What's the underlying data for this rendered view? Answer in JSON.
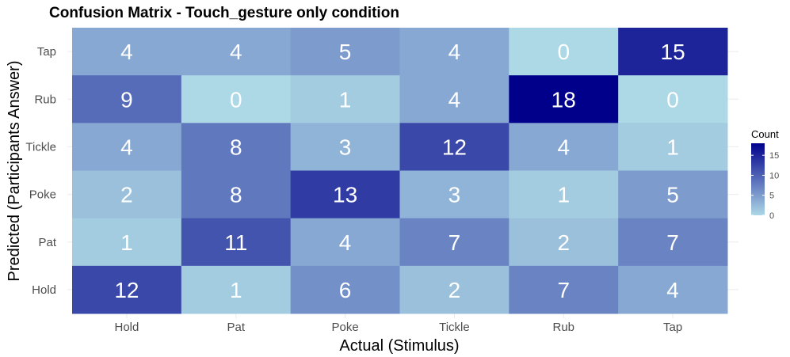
{
  "chart_data": {
    "type": "heatmap",
    "title": "Confusion Matrix - Touch_gesture only condition",
    "xlabel": "Actual (Stimulus)",
    "ylabel": "Predicted (Participants Answer)",
    "x_categories": [
      "Hold",
      "Pat",
      "Poke",
      "Tickle",
      "Rub",
      "Tap"
    ],
    "y_categories_top_to_bottom": [
      "Tap",
      "Rub",
      "Tickle",
      "Poke",
      "Pat",
      "Hold"
    ],
    "matrix": [
      [
        4,
        4,
        5,
        4,
        0,
        15
      ],
      [
        9,
        0,
        1,
        4,
        18,
        0
      ],
      [
        4,
        8,
        3,
        12,
        4,
        1
      ],
      [
        2,
        8,
        13,
        3,
        1,
        5
      ],
      [
        1,
        11,
        4,
        7,
        2,
        7
      ],
      [
        12,
        1,
        6,
        2,
        7,
        4
      ]
    ],
    "value_range": [
      0,
      18
    ],
    "color_low": "#ADD8E6",
    "color_high": "#00008B",
    "legend": {
      "title": "Count",
      "ticks": [
        0,
        5,
        10,
        15
      ],
      "position": "right"
    },
    "grid": true
  }
}
